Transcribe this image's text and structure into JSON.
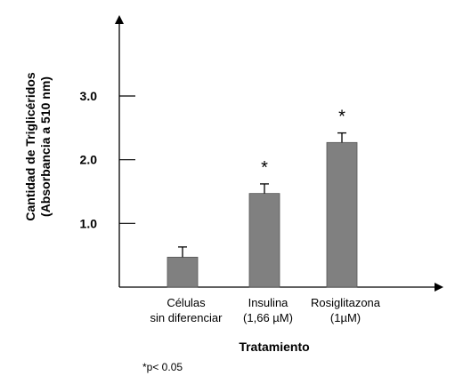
{
  "chart_data": {
    "type": "bar",
    "categories": [
      [
        "Células",
        "sin diferenciar"
      ],
      [
        "Insulina",
        "(1,66 µM)"
      ],
      [
        "Rosiglitazona",
        "(1µM)"
      ]
    ],
    "values": [
      0.47,
      1.47,
      2.27
    ],
    "errors": [
      0.16,
      0.15,
      0.15
    ],
    "significance": [
      "",
      "*",
      "*"
    ],
    "ylim": [
      0,
      3.0
    ],
    "yticks": [
      "1.0",
      "2.0",
      "3.0"
    ],
    "ytick_values": [
      1.0,
      2.0,
      3.0
    ],
    "ylabel_lines": [
      "Cantidad de Triglicéridos",
      "(Absorbancia a 510 nm)"
    ],
    "xlabel": "Tratamiento",
    "footnote": "*p< 0.05",
    "bar_color": "#808080",
    "grid": false
  }
}
